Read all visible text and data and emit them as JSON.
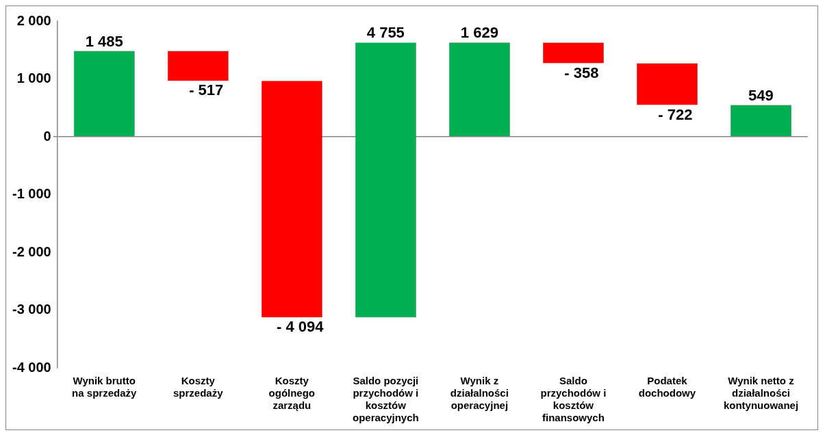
{
  "chart_data": {
    "type": "bar",
    "categories": [
      "Wynik brutto na sprzedaży",
      "Koszty sprzedaży",
      "Koszty ogólnego zarządu",
      "Saldo pozycji przychodów i kosztów operacyjnych",
      "Wynik z działalności operacyjnej",
      "Saldo przychodów i kosztów finansowych",
      "Podatek dochodowy",
      "Wynik netto z działalności kontynuowanej"
    ],
    "values": [
      1485,
      -517,
      -4094,
      4755,
      1629,
      -358,
      -722,
      549
    ],
    "base": [
      0,
      1485,
      968,
      -3126,
      0,
      1629,
      1271,
      0
    ],
    "colors": [
      "#00b050",
      "#ff0000",
      "#ff0000",
      "#00b050",
      "#00b050",
      "#ff0000",
      "#ff0000",
      "#00b050"
    ],
    "value_labels": [
      "1 485",
      "- 517",
      "- 4 094",
      "4 755",
      "1 629",
      "- 358",
      "- 722",
      "549"
    ],
    "ylim": [
      -4000,
      2000
    ],
    "yticks": [
      {
        "value": -4000,
        "label": "-4 000"
      },
      {
        "value": -3000,
        "label": "-3 000"
      },
      {
        "value": -2000,
        "label": "-2 000"
      },
      {
        "value": -1000,
        "label": "-1 000"
      },
      {
        "value": 0,
        "label": "0"
      },
      {
        "value": 1000,
        "label": "1 000"
      },
      {
        "value": 2000,
        "label": "2 000"
      }
    ]
  }
}
